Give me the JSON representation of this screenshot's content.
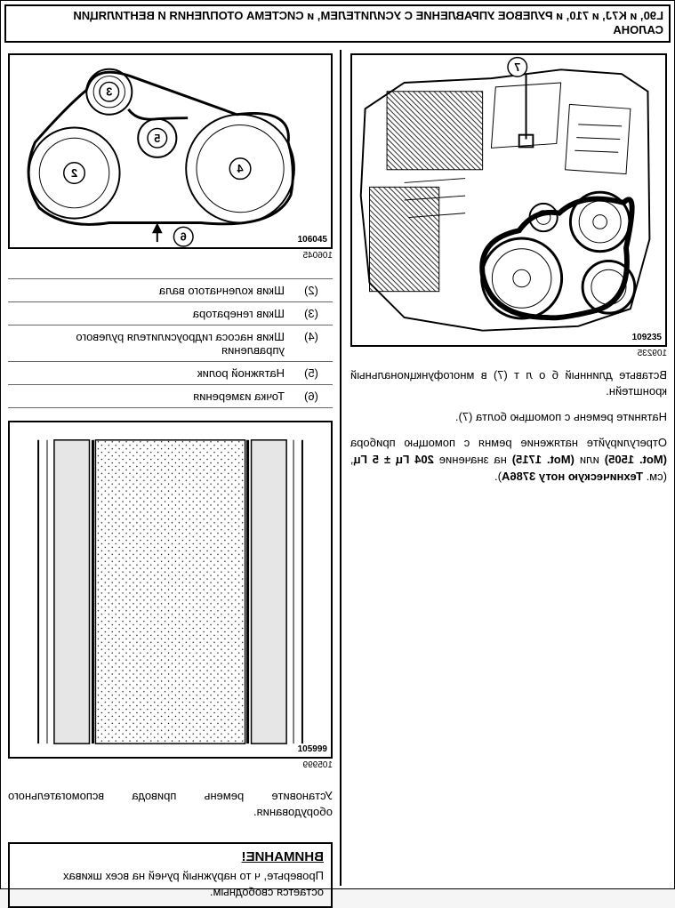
{
  "header": {
    "line1": "L90, и K7J, и 710, и РУЛЕВОЕ УПРАВЛЕНИЕ С УСИЛИТЕЛЕМ, и СИСТЕМА ОТОПЛЕНИЯ И ВЕНТИЛЯЦИИ",
    "line2": "САЛОНА"
  },
  "left": {
    "fig_ref": "109235",
    "fig_ref_below": "109235",
    "para1": "Вставьте    длинный  б о л т     (7)   в многофункциональный кронштейн.",
    "para2": "Натяните ремень с помощью болта (7).",
    "para3_a": "Отрегулируйте  натяжение  ремня  с помощью прибора ",
    "para3_b": "(Mot. 1505)",
    "para3_c": " или ",
    "para3_d": "(Mot. 1715)",
    "para3_e": " на значение ",
    "para3_f": "204 Гц ± 5 Гц",
    "para3_g": ", (см.  ",
    "para3_h": "Техническую ноту 3786A",
    "para3_i": ")."
  },
  "right": {
    "fig1_ref": "106045",
    "fig1_ref_below": "106045",
    "legend": [
      {
        "key": "(2)",
        "text": "Шкив коленчатого вала"
      },
      {
        "key": "(3)",
        "text": "Шкив генератора"
      },
      {
        "key": "(4)",
        "text": "Шкив насоса гидроусилителя рулевого управления"
      },
      {
        "key": "(5)",
        "text": "Натяжной ролик"
      },
      {
        "key": "(6)",
        "text": "Точка измерения"
      }
    ],
    "fig2_ref": "105999",
    "fig2_ref_below": "105999",
    "para_below": "Установите ремень привода вспомогательного оборудования.",
    "warning": {
      "title": "ВНИМАНИЕ!",
      "text": "Проверьте, ч то  наружный  ручей  на  всех шкивах остается свободным."
    },
    "pulley_labels": {
      "p2": "2",
      "p3": "3",
      "p4": "4",
      "p5": "5",
      "p6": "6"
    },
    "engine_label": "7"
  },
  "colors": {
    "page_bg": "#ffffff",
    "border": "#000000",
    "text": "#000000",
    "grid": "#666666"
  }
}
